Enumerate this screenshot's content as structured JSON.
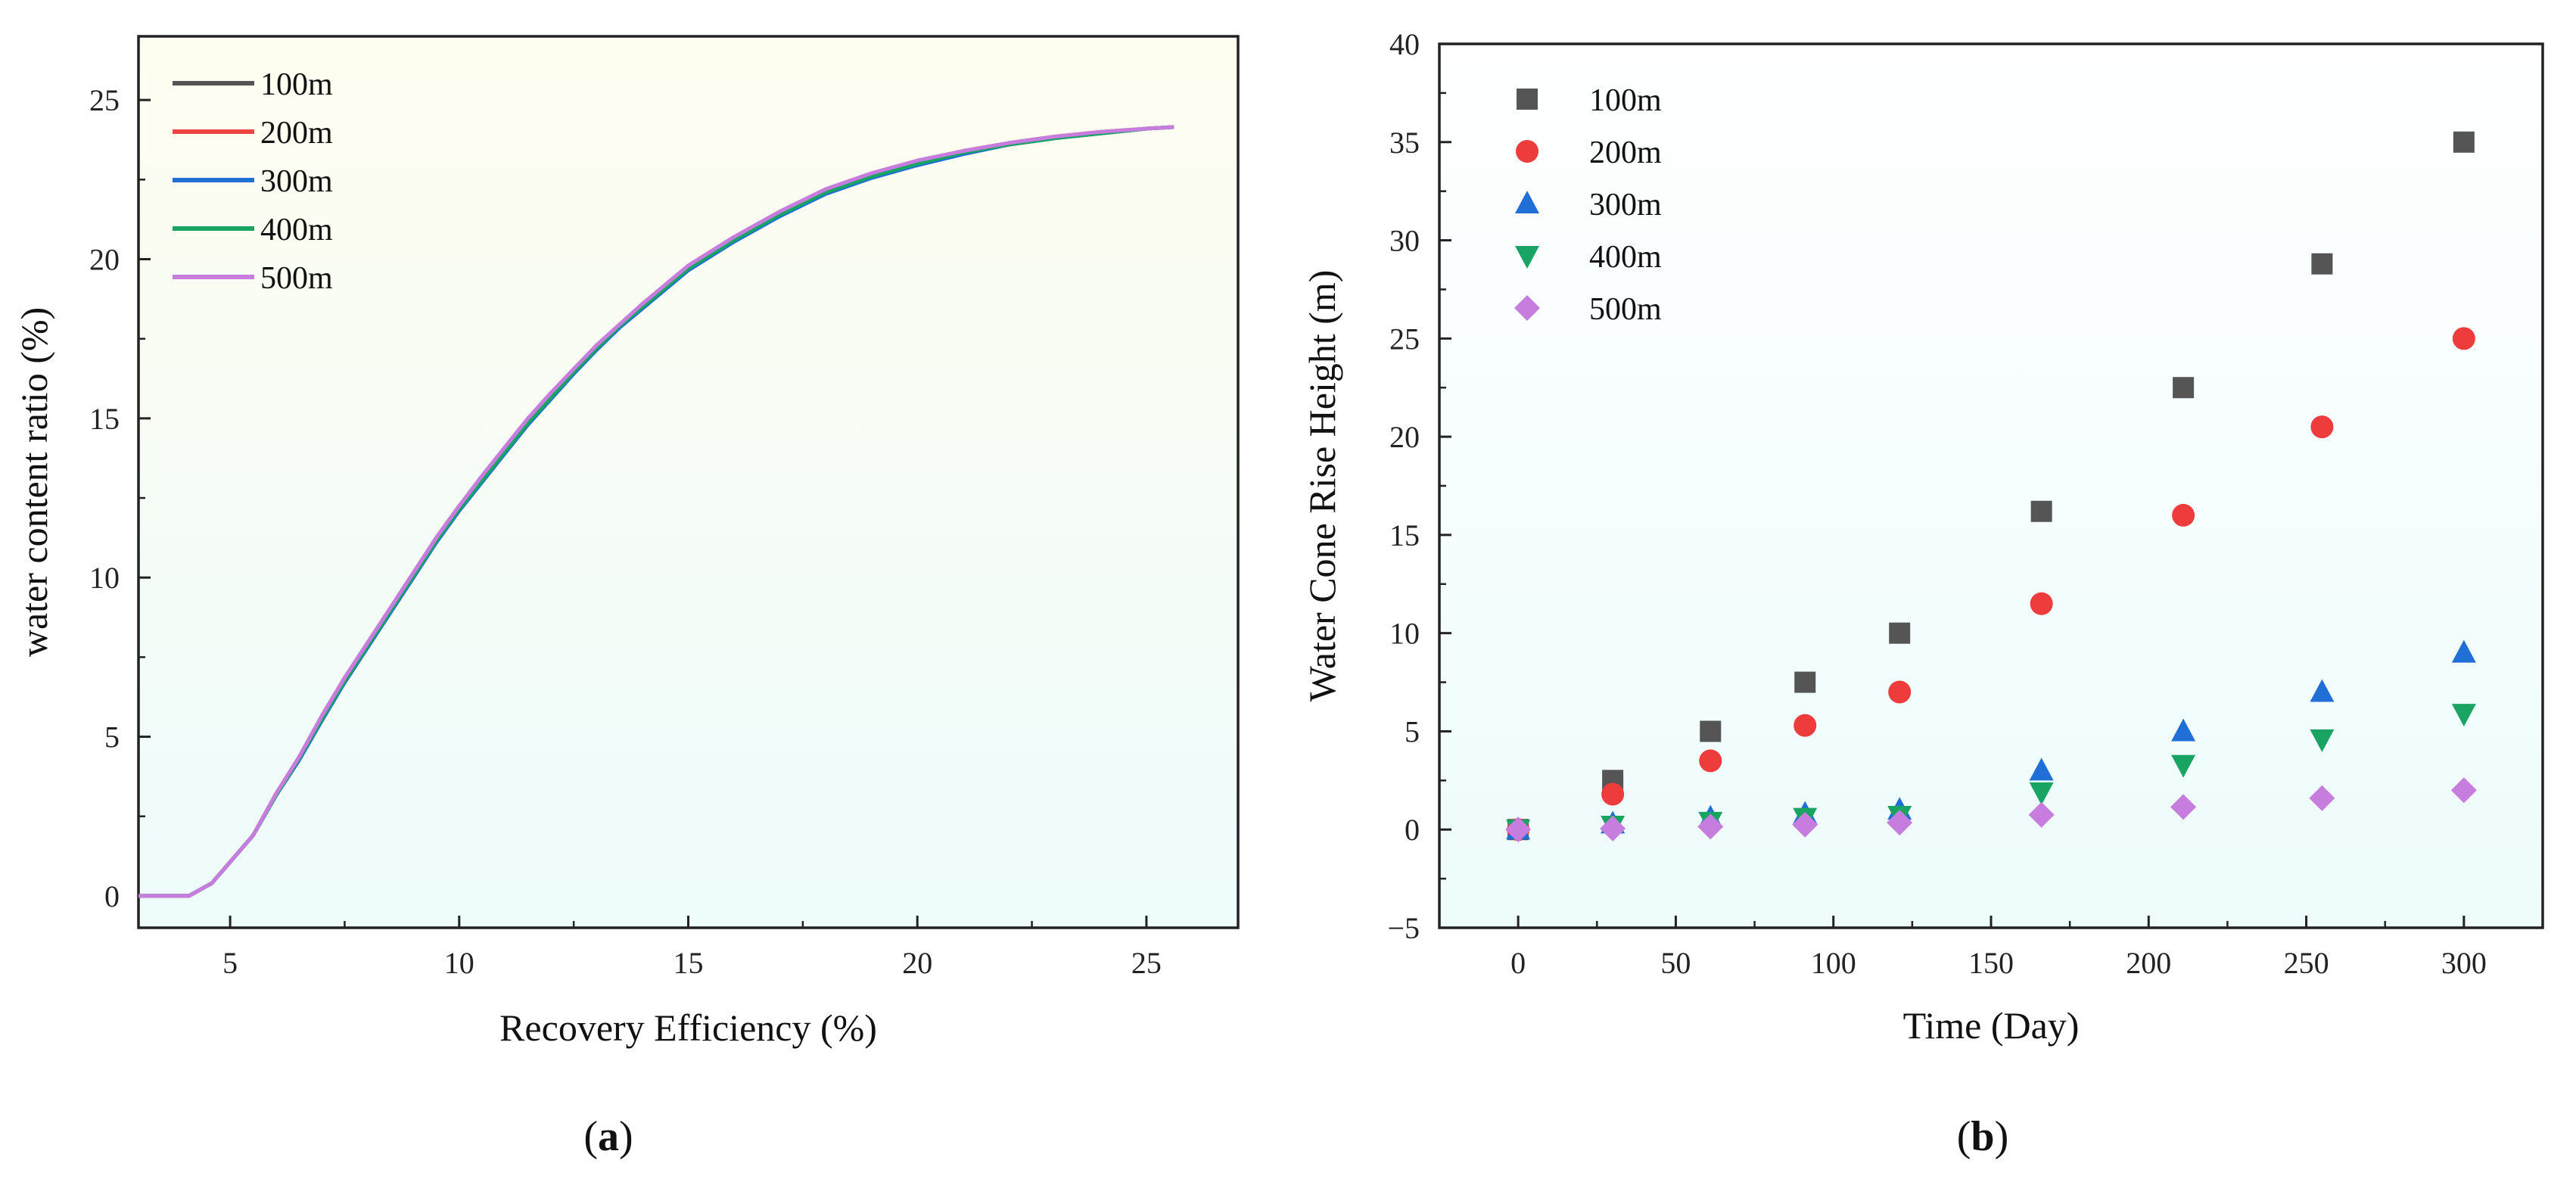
{
  "chart_data": [
    {
      "type": "line",
      "panel_label": "a",
      "xlabel": "Recovery Efficiency (%)",
      "ylabel": "water content ratio (%)",
      "xlim": [
        3,
        27
      ],
      "ylim": [
        -1,
        27
      ],
      "xticks": [
        5,
        10,
        15,
        20,
        25
      ],
      "yticks": [
        0,
        5,
        10,
        15,
        20,
        25
      ],
      "legend_position": "top-left",
      "background": [
        "#fffdf0",
        "#eefcfc"
      ],
      "series": [
        {
          "name": "100m",
          "color": "#555555",
          "x": [
            3,
            4.1,
            4.6,
            5.5,
            6.0,
            6.5,
            7.0,
            7.5,
            8.0,
            8.5,
            9.0,
            9.5,
            10.0,
            10.5,
            11.0,
            11.5,
            12.0,
            12.5,
            13.0,
            13.5,
            14.0,
            14.5,
            15.0,
            16.0,
            17.0,
            18.0,
            19.0,
            20.0,
            21.0,
            22.0,
            23.0,
            24.0,
            25.0,
            25.6
          ],
          "y": [
            0,
            0,
            0.4,
            1.9,
            3.2,
            4.3,
            5.6,
            6.8,
            7.9,
            9.0,
            10.1,
            11.2,
            12.2,
            13.1,
            14.0,
            14.9,
            15.7,
            16.5,
            17.2,
            17.9,
            18.5,
            19.1,
            19.7,
            20.6,
            21.4,
            22.1,
            22.6,
            23.0,
            23.35,
            23.6,
            23.8,
            23.95,
            24.1,
            24.15
          ]
        },
        {
          "name": "200m",
          "color": "#ee4444",
          "x": [
            3,
            4.1,
            4.6,
            5.5,
            6.0,
            6.5,
            7.0,
            7.5,
            8.0,
            8.5,
            9.0,
            9.5,
            10.0,
            10.5,
            11.0,
            11.5,
            12.0,
            12.5,
            13.0,
            13.5,
            14.0,
            14.5,
            15.0,
            16.0,
            17.0,
            18.0,
            19.0,
            20.0,
            21.0,
            22.0,
            23.0,
            24.0,
            25.0,
            25.6
          ],
          "y": [
            0,
            0,
            0.4,
            1.9,
            3.2,
            4.35,
            5.65,
            6.85,
            7.95,
            9.05,
            10.15,
            11.25,
            12.25,
            13.15,
            14.05,
            14.95,
            15.75,
            16.55,
            17.25,
            17.95,
            18.55,
            19.15,
            19.75,
            20.65,
            21.45,
            22.15,
            22.65,
            23.05,
            23.4,
            23.65,
            23.85,
            24.0,
            24.1,
            24.15
          ]
        },
        {
          "name": "300m",
          "color": "#1f6fd6",
          "x": [
            3,
            4.1,
            4.6,
            5.5,
            6.0,
            6.5,
            7.0,
            7.5,
            8.0,
            8.5,
            9.0,
            9.5,
            10.0,
            10.5,
            11.0,
            11.5,
            12.0,
            12.5,
            13.0,
            13.5,
            14.0,
            14.5,
            15.0,
            16.0,
            17.0,
            18.0,
            19.0,
            20.0,
            21.0,
            22.0,
            23.0,
            24.0,
            25.0,
            25.6
          ],
          "y": [
            0,
            0,
            0.4,
            1.9,
            3.15,
            4.25,
            5.5,
            6.7,
            7.8,
            8.9,
            10.0,
            11.1,
            12.1,
            13.0,
            13.9,
            14.8,
            15.6,
            16.4,
            17.15,
            17.85,
            18.45,
            19.05,
            19.65,
            20.55,
            21.35,
            22.05,
            22.55,
            22.95,
            23.3,
            23.6,
            23.8,
            23.95,
            24.1,
            24.15
          ]
        },
        {
          "name": "400m",
          "color": "#19a463",
          "x": [
            3,
            4.1,
            4.6,
            5.5,
            6.0,
            6.5,
            7.0,
            7.5,
            8.0,
            8.5,
            9.0,
            9.5,
            10.0,
            10.5,
            11.0,
            11.5,
            12.0,
            12.5,
            13.0,
            13.5,
            14.0,
            14.5,
            15.0,
            16.0,
            17.0,
            18.0,
            19.0,
            20.0,
            21.0,
            22.0,
            23.0,
            24.0,
            25.0,
            25.6
          ],
          "y": [
            0,
            0,
            0.4,
            1.9,
            3.15,
            4.3,
            5.55,
            6.75,
            7.85,
            8.95,
            10.05,
            11.15,
            12.15,
            13.05,
            13.95,
            14.85,
            15.65,
            16.45,
            17.2,
            17.9,
            18.5,
            19.1,
            19.7,
            20.6,
            21.4,
            22.1,
            22.6,
            23.0,
            23.35,
            23.6,
            23.8,
            23.95,
            24.1,
            24.15
          ]
        },
        {
          "name": "500m",
          "color": "#c77dde",
          "x": [
            3,
            4.1,
            4.6,
            5.5,
            6.0,
            6.5,
            7.0,
            7.5,
            8.0,
            8.5,
            9.0,
            9.5,
            10.0,
            10.5,
            11.0,
            11.5,
            12.0,
            12.5,
            13.0,
            13.5,
            14.0,
            14.5,
            15.0,
            16.0,
            17.0,
            18.0,
            19.0,
            20.0,
            21.0,
            22.0,
            23.0,
            24.0,
            25.0,
            25.6
          ],
          "y": [
            0,
            0,
            0.4,
            1.9,
            3.2,
            4.35,
            5.65,
            6.85,
            7.95,
            9.05,
            10.15,
            11.25,
            12.25,
            13.2,
            14.1,
            15.0,
            15.8,
            16.55,
            17.3,
            17.95,
            18.6,
            19.2,
            19.8,
            20.7,
            21.5,
            22.2,
            22.7,
            23.1,
            23.4,
            23.65,
            23.85,
            24.0,
            24.1,
            24.15
          ]
        }
      ]
    },
    {
      "type": "scatter",
      "panel_label": "b",
      "xlabel": "Time (Day)",
      "ylabel": "Water Cone Rise Height (m)",
      "xlim": [
        -25,
        325
      ],
      "ylim": [
        -5,
        40
      ],
      "xticks": [
        0,
        50,
        100,
        150,
        200,
        250,
        300
      ],
      "yticks": [
        -5,
        0,
        5,
        10,
        15,
        20,
        25,
        30,
        35,
        40
      ],
      "legend_position": "top-left",
      "background": [
        "#ffffff",
        "#eefcfc"
      ],
      "series": [
        {
          "name": "100m",
          "marker": "square",
          "color": "#555555",
          "x": [
            0,
            30,
            61,
            91,
            121,
            166,
            211,
            255,
            300
          ],
          "y": [
            0,
            2.5,
            5.0,
            7.5,
            10.0,
            16.2,
            22.5,
            28.8,
            35.0
          ]
        },
        {
          "name": "200m",
          "marker": "circle",
          "color": "#ee3b3b",
          "x": [
            0,
            30,
            61,
            91,
            121,
            166,
            211,
            255,
            300
          ],
          "y": [
            0,
            1.8,
            3.5,
            5.3,
            7.0,
            11.5,
            16.0,
            20.5,
            25.0
          ]
        },
        {
          "name": "300m",
          "marker": "triangle-up",
          "color": "#1f6fd6",
          "x": [
            0,
            30,
            61,
            91,
            121,
            166,
            211,
            255,
            300
          ],
          "y": [
            0,
            0.3,
            0.6,
            0.8,
            1.0,
            3.0,
            5.0,
            7.0,
            9.0
          ]
        },
        {
          "name": "400m",
          "marker": "triangle-down",
          "color": "#19a463",
          "x": [
            0,
            30,
            61,
            91,
            121,
            166,
            211,
            255,
            300
          ],
          "y": [
            0,
            0.2,
            0.4,
            0.6,
            0.7,
            1.9,
            3.3,
            4.6,
            5.9
          ]
        },
        {
          "name": "500m",
          "marker": "diamond",
          "color": "#c77dde",
          "x": [
            0,
            30,
            61,
            91,
            121,
            166,
            211,
            255,
            300
          ],
          "y": [
            0,
            0.05,
            0.15,
            0.25,
            0.35,
            0.75,
            1.15,
            1.6,
            2.0
          ]
        }
      ]
    }
  ]
}
